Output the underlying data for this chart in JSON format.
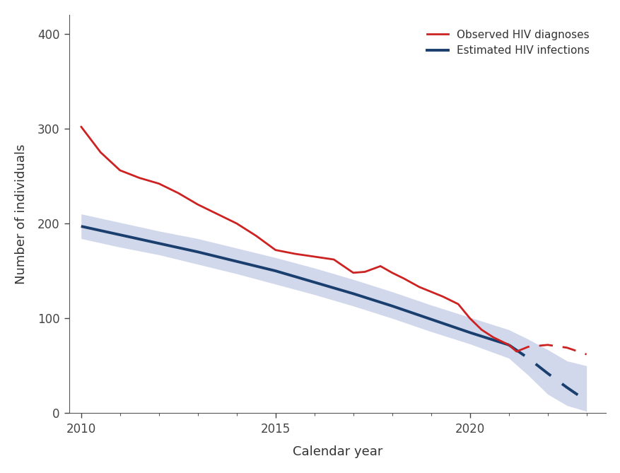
{
  "title": "",
  "xlabel": "Calendar year",
  "ylabel": "Number of individuals",
  "xlim": [
    2009.7,
    2023.5
  ],
  "ylim": [
    0,
    420
  ],
  "yticks": [
    0,
    100,
    200,
    300,
    400
  ],
  "xticks": [
    2010,
    2015,
    2020
  ],
  "bg_color": "#ffffff",
  "red_solid_x": [
    2010,
    2010.5,
    2011,
    2011.5,
    2012,
    2012.5,
    2013,
    2013.5,
    2014,
    2014.5,
    2015,
    2015.5,
    2016,
    2016.5,
    2017,
    2017.3,
    2017.7,
    2018,
    2018.3,
    2018.7,
    2019,
    2019.3,
    2019.7,
    2020,
    2020.3,
    2020.6,
    2021,
    2021.2
  ],
  "red_solid_y": [
    302,
    275,
    256,
    248,
    242,
    232,
    220,
    210,
    200,
    187,
    172,
    168,
    165,
    162,
    148,
    149,
    155,
    148,
    142,
    133,
    128,
    123,
    115,
    100,
    88,
    80,
    72,
    65
  ],
  "red_dashed_x": [
    2021.2,
    2021.5,
    2022,
    2022.5,
    2023
  ],
  "red_dashed_y": [
    65,
    70,
    72,
    69,
    62
  ],
  "blue_solid_x": [
    2010,
    2011,
    2012,
    2013,
    2014,
    2015,
    2016,
    2017,
    2018,
    2019,
    2020,
    2021
  ],
  "blue_solid_y": [
    197,
    188,
    179,
    170,
    160,
    150,
    138,
    126,
    113,
    99,
    85,
    72
  ],
  "blue_dashed_x": [
    2021,
    2021.5,
    2022,
    2022.5,
    2023
  ],
  "blue_dashed_y": [
    72,
    58,
    42,
    27,
    13
  ],
  "upper_band_x": [
    2010,
    2011,
    2012,
    2013,
    2014,
    2015,
    2016,
    2017,
    2018,
    2019,
    2020,
    2021,
    2021.5,
    2022,
    2022.5,
    2023
  ],
  "upper_band_y": [
    210,
    201,
    192,
    184,
    174,
    164,
    153,
    141,
    128,
    114,
    101,
    88,
    78,
    67,
    55,
    50
  ],
  "lower_band_y": [
    184,
    175,
    167,
    157,
    147,
    136,
    125,
    113,
    100,
    86,
    73,
    58,
    40,
    20,
    8,
    2
  ],
  "red_color": "#cc2222",
  "blue_color": "#1a3f6f",
  "band_color": "#8899cc",
  "band_alpha": 0.38,
  "legend_labels": [
    "Observed HIV diagnoses",
    "Estimated HIV infections"
  ]
}
